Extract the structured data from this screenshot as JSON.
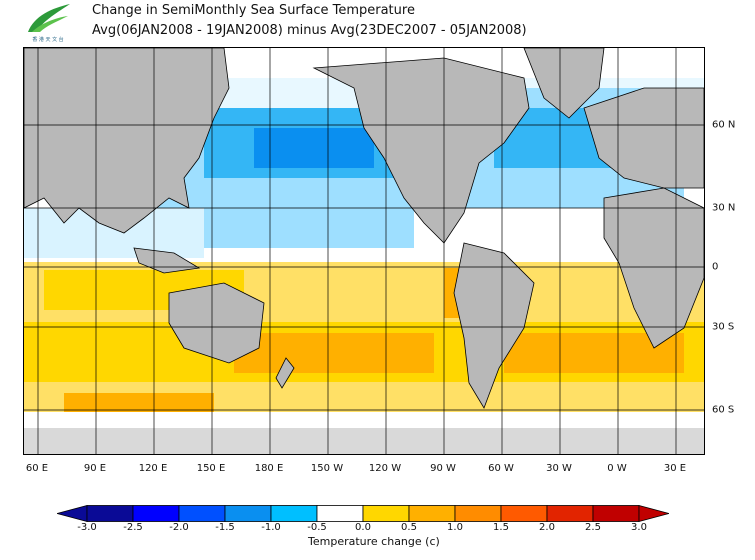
{
  "logo": {
    "name": "agency-logo-icon",
    "text": "香 港 天 文 台"
  },
  "title_line1": "Change in SemiMonthly Sea Surface Temperature",
  "title_line2": "Avg(06JAN2008 - 19JAN2008) minus Avg(23DEC2007 - 05JAN2008)",
  "lon_labels": [
    "60 E",
    "90 E",
    "120 E",
    "150 E",
    "180 E",
    "150 W",
    "120 W",
    "90 W",
    "60 W",
    "30 W",
    "0 W",
    "30 E"
  ],
  "lat_labels": [
    "60 N",
    "30 N",
    "0",
    "30 S",
    "60 S"
  ],
  "colorbar": {
    "labels": [
      "-3.0",
      "-2.5",
      "-2.0",
      "-1.5",
      "-1.0",
      "-0.5",
      "0.0",
      "0.5",
      "1.0",
      "1.5",
      "2.0",
      "2.5",
      "3.0"
    ],
    "colors": [
      "#0a0a96",
      "#0000ff",
      "#0050ff",
      "#0a8ff0",
      "#00bfff",
      "#ffffff",
      "#ffd700",
      "#ffb000",
      "#ff8c00",
      "#ff5a00",
      "#e22400",
      "#c00000"
    ],
    "title": "Temperature change  (c)"
  },
  "colors": {
    "land": "#b8b8b8",
    "ice": "#d9d9d9",
    "grid": "#000000"
  }
}
